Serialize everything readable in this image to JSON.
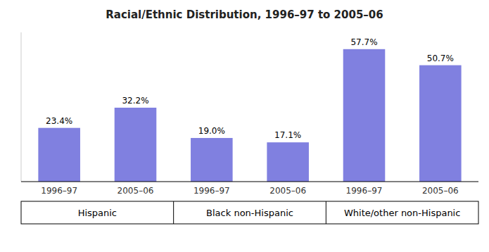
{
  "chart_data": {
    "type": "bar",
    "title": "Racial/Ethnic Distribution, 1996–97 to 2005–06",
    "categories": [
      "1996–97",
      "2005–06",
      "1996–97",
      "2005–06",
      "1996–97",
      "2005–06"
    ],
    "values": [
      23.4,
      32.2,
      19.0,
      17.1,
      57.7,
      50.7
    ],
    "value_labels": [
      "23.4%",
      "32.2%",
      "19.0%",
      "17.1%",
      "57.7%",
      "50.7%"
    ],
    "groups": [
      "Hispanic",
      "Black non-Hispanic",
      "White/other non-Hispanic"
    ],
    "color": "#8080e0",
    "ylim": [
      0,
      65
    ],
    "data_labels": true,
    "tick_labels": "x",
    "grid": false
  }
}
